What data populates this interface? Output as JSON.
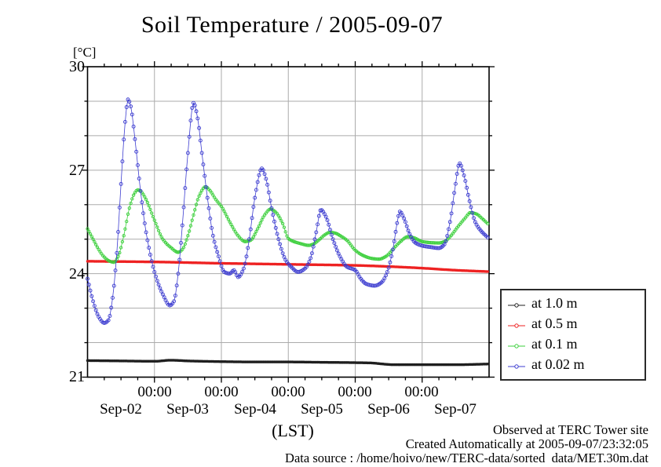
{
  "page_title": "Soil Temperature / 2005-09-07",
  "footer": {
    "line1": "Observed at TERC Tower site",
    "line2": "Created Automatically at 2005-09-07/23:32:05",
    "line3": "Data source : /home/hoivo/new/TERC-data/sorted  data/MET.30m.dat"
  },
  "chart_data": {
    "type": "line",
    "title": "Soil Temperature / 2005-09-07",
    "ylabel_unit": "[°C]",
    "xlabel": "(LST)",
    "ylim": [
      21,
      30
    ],
    "y_major_ticks": [
      21,
      24,
      27,
      30
    ],
    "y_minor_step": 1,
    "grid_color": "#ababab",
    "frame_color": "#000000",
    "x_range_hours": [
      0,
      144
    ],
    "x_start_label": "Sep-02 00:00 LST",
    "x_major_tick_hours": [
      24,
      48,
      72,
      96,
      120
    ],
    "x_major_tick_label": "00:00",
    "x_minor_step_hours": 6,
    "day_labels": [
      "Sep-02",
      "Sep-03",
      "Sep-04",
      "Sep-05",
      "Sep-06",
      "Sep-07"
    ],
    "day_label_center_hours": [
      12,
      36,
      60,
      84,
      108,
      132
    ],
    "legend_position": "right-bottom",
    "sample_step_hours": 0.5,
    "series": [
      {
        "name": "at 1.0 m",
        "color": "#1f1f1f",
        "line_width": 1.3,
        "marker": {
          "r": 1.3,
          "open": false
        },
        "keypoints": [
          [
            0,
            21.48
          ],
          [
            12,
            21.47
          ],
          [
            24,
            21.46
          ],
          [
            30,
            21.49
          ],
          [
            36,
            21.47
          ],
          [
            48,
            21.45
          ],
          [
            60,
            21.44
          ],
          [
            72,
            21.44
          ],
          [
            84,
            21.43
          ],
          [
            96,
            21.42
          ],
          [
            102,
            21.41
          ],
          [
            106,
            21.38
          ],
          [
            110,
            21.36
          ],
          [
            120,
            21.36
          ],
          [
            132,
            21.36
          ],
          [
            143.5,
            21.38
          ]
        ]
      },
      {
        "name": "at 0.5 m",
        "color": "#ee2222",
        "line_width": 1.3,
        "marker": {
          "r": 1.3,
          "open": false
        },
        "keypoints": [
          [
            0,
            24.36
          ],
          [
            24,
            24.34
          ],
          [
            48,
            24.3
          ],
          [
            72,
            24.27
          ],
          [
            96,
            24.24
          ],
          [
            110,
            24.2
          ],
          [
            120,
            24.16
          ],
          [
            132,
            24.1
          ],
          [
            143.5,
            24.06
          ]
        ]
      },
      {
        "name": "at 0.1 m",
        "color": "#3bcf3b",
        "line_width": 0.8,
        "marker": {
          "r": 1.7,
          "open": true
        },
        "keypoints": [
          [
            0,
            25.3
          ],
          [
            2,
            25.0
          ],
          [
            4,
            24.7
          ],
          [
            6,
            24.48
          ],
          [
            8,
            24.36
          ],
          [
            9.5,
            24.33
          ],
          [
            11,
            24.5
          ],
          [
            13,
            25.1
          ],
          [
            15,
            25.9
          ],
          [
            17,
            26.35
          ],
          [
            18,
            26.43
          ],
          [
            19.5,
            26.35
          ],
          [
            21,
            26.15
          ],
          [
            24,
            25.55
          ],
          [
            27,
            25.0
          ],
          [
            30,
            24.75
          ],
          [
            32.5,
            24.62
          ],
          [
            34,
            24.7
          ],
          [
            36,
            25.1
          ],
          [
            38,
            25.7
          ],
          [
            40,
            26.25
          ],
          [
            42.3,
            26.52
          ],
          [
            44,
            26.4
          ],
          [
            46,
            26.15
          ],
          [
            48,
            25.95
          ],
          [
            51,
            25.5
          ],
          [
            54,
            25.1
          ],
          [
            56.5,
            24.93
          ],
          [
            58.5,
            24.97
          ],
          [
            61,
            25.3
          ],
          [
            63.5,
            25.7
          ],
          [
            65.6,
            25.87
          ],
          [
            67.5,
            25.78
          ],
          [
            70,
            25.45
          ],
          [
            72,
            25.02
          ],
          [
            74,
            24.93
          ],
          [
            76,
            24.88
          ],
          [
            79.4,
            24.82
          ],
          [
            81,
            24.86
          ],
          [
            83,
            24.98
          ],
          [
            85,
            25.12
          ],
          [
            87,
            25.2
          ],
          [
            89,
            25.17
          ],
          [
            91,
            25.08
          ],
          [
            93,
            24.97
          ],
          [
            96,
            24.68
          ],
          [
            99,
            24.52
          ],
          [
            102,
            24.44
          ],
          [
            104.5,
            24.42
          ],
          [
            107,
            24.5
          ],
          [
            110,
            24.75
          ],
          [
            112.5,
            24.95
          ],
          [
            114.7,
            25.07
          ],
          [
            117,
            25.04
          ],
          [
            120,
            24.93
          ],
          [
            123,
            24.9
          ],
          [
            126,
            24.89
          ],
          [
            128,
            24.93
          ],
          [
            130,
            25.07
          ],
          [
            133,
            25.38
          ],
          [
            135.5,
            25.62
          ],
          [
            137.3,
            25.77
          ],
          [
            139.5,
            25.73
          ],
          [
            141.5,
            25.6
          ],
          [
            143.5,
            25.45
          ]
        ]
      },
      {
        "name": "at 0.02 m",
        "color": "#3d3dd0",
        "line_width": 0.8,
        "marker": {
          "r": 2.0,
          "open": true
        },
        "keypoints": [
          [
            0,
            23.85
          ],
          [
            2,
            23.2
          ],
          [
            4,
            22.75
          ],
          [
            6,
            22.57
          ],
          [
            7.5,
            22.65
          ],
          [
            9,
            23.3
          ],
          [
            10.5,
            24.6
          ],
          [
            12,
            26.6
          ],
          [
            13.5,
            28.4
          ],
          [
            14.5,
            29.05
          ],
          [
            15.5,
            28.85
          ],
          [
            17,
            27.9
          ],
          [
            19,
            26.4
          ],
          [
            21,
            25.2
          ],
          [
            24,
            24.05
          ],
          [
            27,
            23.4
          ],
          [
            29.5,
            23.08
          ],
          [
            31,
            23.2
          ],
          [
            32.5,
            24.0
          ],
          [
            34,
            25.4
          ],
          [
            36,
            27.5
          ],
          [
            38,
            28.95
          ],
          [
            39.5,
            28.5
          ],
          [
            41,
            27.5
          ],
          [
            43,
            26.2
          ],
          [
            45,
            25.1
          ],
          [
            47,
            24.5
          ],
          [
            49,
            24.05
          ],
          [
            51,
            24.0
          ],
          [
            52.5,
            24.1
          ],
          [
            54,
            23.9
          ],
          [
            56,
            24.15
          ],
          [
            58,
            25.0
          ],
          [
            60,
            26.2
          ],
          [
            62.5,
            27.05
          ],
          [
            64,
            26.75
          ],
          [
            66,
            25.9
          ],
          [
            68.5,
            25.0
          ],
          [
            71,
            24.4
          ],
          [
            73,
            24.2
          ],
          [
            75.5,
            24.05
          ],
          [
            78,
            24.15
          ],
          [
            80,
            24.45
          ],
          [
            82,
            25.2
          ],
          [
            83.7,
            25.85
          ],
          [
            85.5,
            25.65
          ],
          [
            88,
            25.0
          ],
          [
            90.5,
            24.5
          ],
          [
            93,
            24.2
          ],
          [
            96,
            24.1
          ],
          [
            98,
            23.85
          ],
          [
            100,
            23.7
          ],
          [
            103,
            23.65
          ],
          [
            105.5,
            23.75
          ],
          [
            107.5,
            24.05
          ],
          [
            109.5,
            24.7
          ],
          [
            111.2,
            25.55
          ],
          [
            112,
            25.8
          ],
          [
            113.5,
            25.6
          ],
          [
            115.5,
            25.15
          ],
          [
            117.5,
            24.9
          ],
          [
            120,
            24.81
          ],
          [
            123,
            24.77
          ],
          [
            126,
            24.74
          ],
          [
            128,
            24.85
          ],
          [
            130,
            25.5
          ],
          [
            131.8,
            26.5
          ],
          [
            133.4,
            27.2
          ],
          [
            135,
            26.85
          ],
          [
            137,
            26.1
          ],
          [
            139,
            25.5
          ],
          [
            141,
            25.25
          ],
          [
            143.5,
            25.05
          ]
        ]
      }
    ]
  }
}
